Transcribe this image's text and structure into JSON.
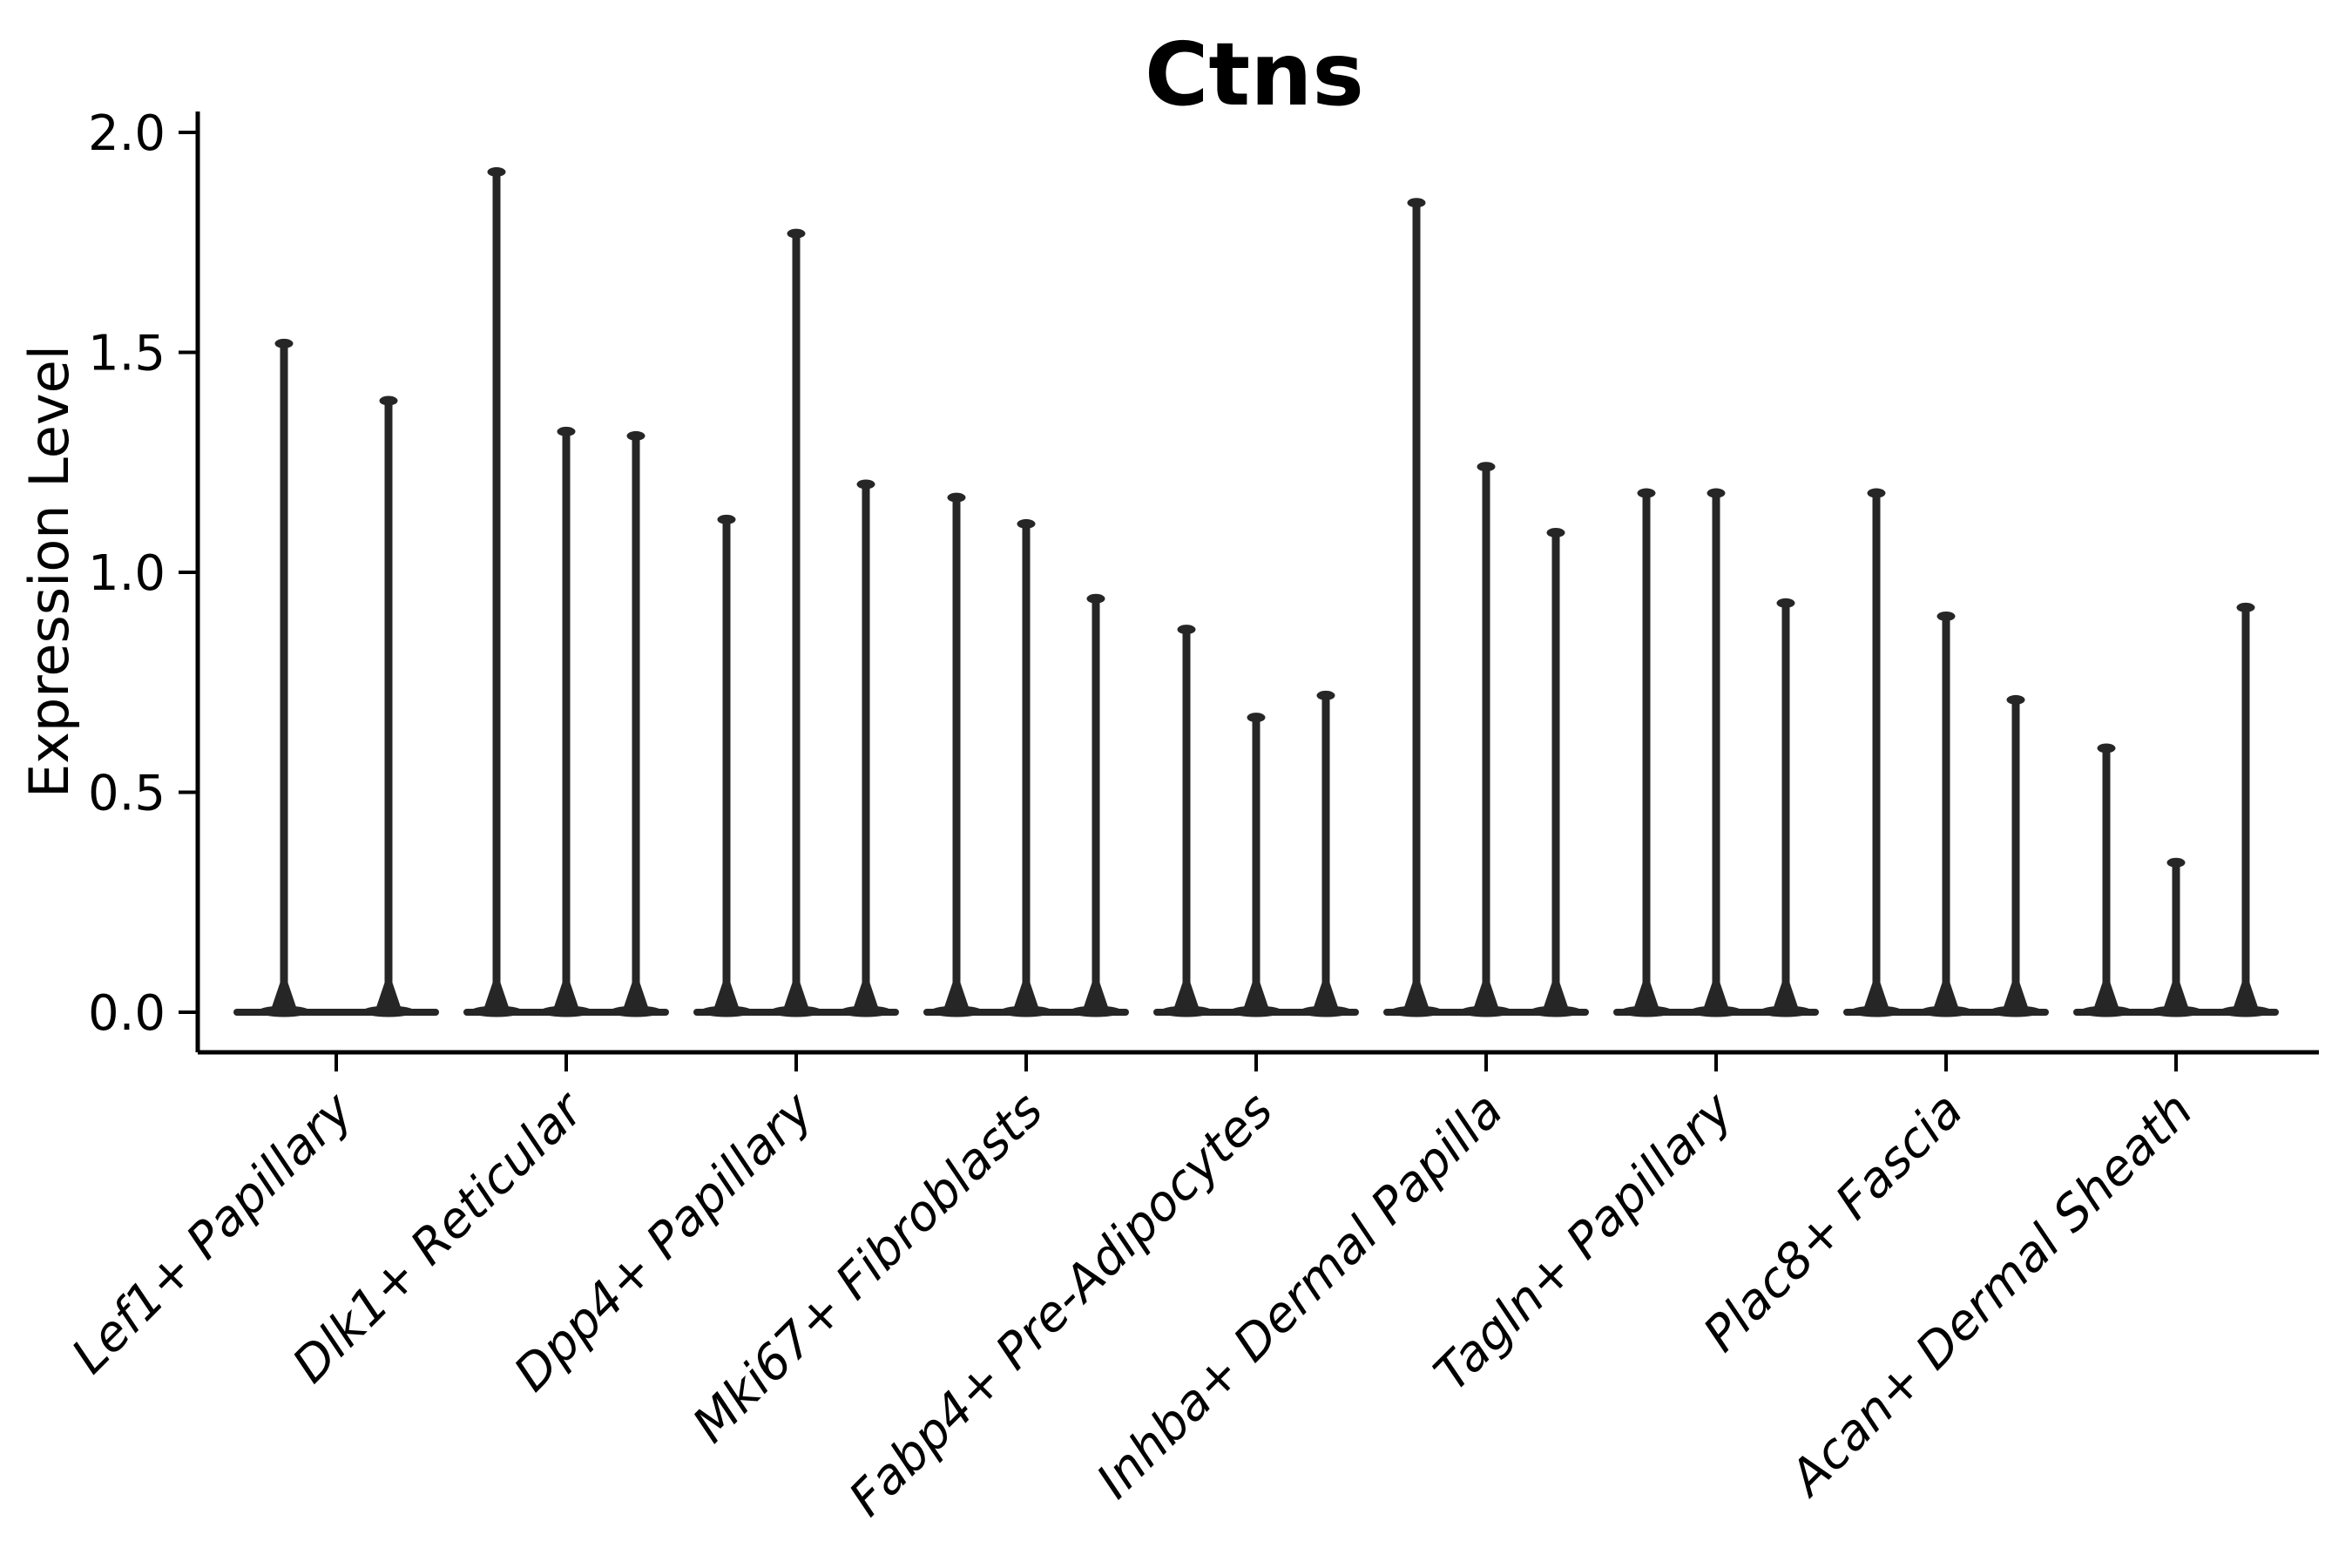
{
  "chart_data": {
    "type": "violin",
    "title": "Ctns",
    "xlabel": "",
    "ylabel": "Expression Level",
    "ylim": [
      0.0,
      2.0
    ],
    "yticks": [
      "0.0",
      "0.5",
      "1.0",
      "1.5",
      "2.0"
    ],
    "grid": false,
    "legend": null,
    "violin_color": "#262626",
    "axis_color": "#000000",
    "categories": [
      "Lef1+ Papillary",
      "Dlk1+ Reticular",
      "Dpp4+ Papillary",
      "Mki67+ Fibroblasts",
      "Fabp4+ Pre-Adipocytes",
      "Inhba+ Dermal Papilla",
      "Tagln+ Papillary",
      "Plac8+ Fascia",
      "Acan+ Dermal Sheath"
    ],
    "series": [
      {
        "name": "Lef1+ Papillary",
        "violin_max_values": [
          1.53,
          1.4
        ]
      },
      {
        "name": "Dlk1+ Reticular",
        "violin_max_values": [
          1.92,
          1.33,
          1.32
        ]
      },
      {
        "name": "Dpp4+ Papillary",
        "violin_max_values": [
          1.13,
          1.78,
          1.21
        ]
      },
      {
        "name": "Mki67+ Fibroblasts",
        "violin_max_values": [
          1.18,
          1.12,
          0.95
        ]
      },
      {
        "name": "Fabp4+ Pre-Adipocytes",
        "violin_max_values": [
          0.88,
          0.68,
          0.73
        ]
      },
      {
        "name": "Inhba+ Dermal Papilla",
        "violin_max_values": [
          1.85,
          1.25,
          1.1
        ]
      },
      {
        "name": "Tagln+ Papillary",
        "violin_max_values": [
          1.19,
          1.19,
          0.94
        ]
      },
      {
        "name": "Plac8+ Fascia",
        "violin_max_values": [
          1.19,
          0.91,
          0.72
        ]
      },
      {
        "name": "Acan+ Dermal Sheath",
        "violin_max_values": [
          0.61,
          0.35,
          0.93
        ]
      }
    ]
  }
}
